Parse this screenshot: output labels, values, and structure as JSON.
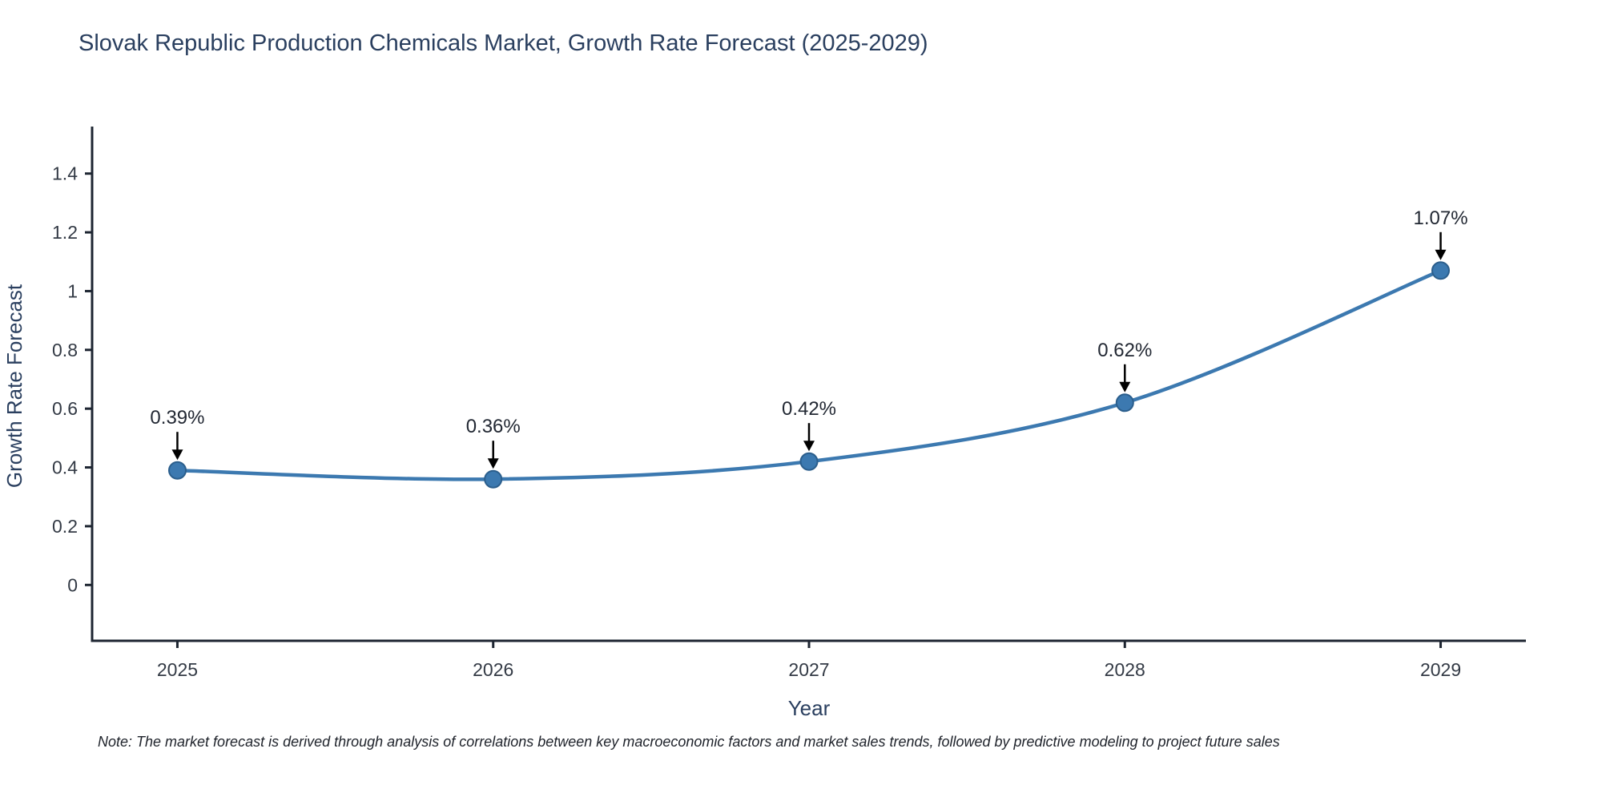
{
  "page": {
    "title": "Slovak Republic Production Chemicals Market, Growth Rate Forecast (2025-2029)",
    "note": "Note: The market forecast is derived through analysis of correlations between key macroeconomic factors and market sales trends, followed by predictive modeling to project future sales"
  },
  "chart_data": {
    "type": "line",
    "title": "Slovak Republic Production Chemicals Market, Growth Rate Forecast (2025-2029)",
    "xlabel": "Year",
    "ylabel": "Growth Rate Forecast",
    "categories": [
      2025,
      2026,
      2027,
      2028,
      2029
    ],
    "values": [
      0.39,
      0.36,
      0.42,
      0.62,
      1.07
    ],
    "point_labels": [
      "0.39%",
      "0.36%",
      "0.42%",
      "0.62%",
      "1.07%"
    ],
    "yticks": [
      0,
      0.2,
      0.4,
      0.6,
      0.8,
      1,
      1.2,
      1.4
    ],
    "xlim": [
      2024.73,
      2029.27
    ],
    "ylim": [
      -0.19,
      1.56
    ],
    "grid": false,
    "legend": false,
    "line_shape": "spline",
    "colors": {
      "line": "#3c79b0",
      "marker_fill": "#3c79b0",
      "marker_edge": "#2b5e8c",
      "axis": "#1d2531",
      "tick_label": "#333a45",
      "title": "#2a3f5f",
      "axis_title": "#2a3f5f",
      "annotation": "#222833",
      "arrow": "#000000"
    }
  }
}
